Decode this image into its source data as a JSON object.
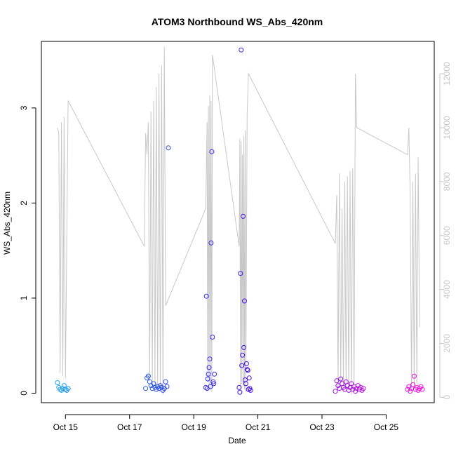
{
  "chart_data": {
    "type": "scatter",
    "title": "ATOM3 Northbound WS_Abs_420nm",
    "xlabel": "Date",
    "ylabel": "WS_Abs_420nm",
    "xlim": [
      "2016-10-14T06:00",
      "2016-10-26T12:00"
    ],
    "ylim": [
      -0.1,
      3.7
    ],
    "yticks": [
      0,
      1,
      2,
      3
    ],
    "y2lim": [
      -200,
      13200
    ],
    "y2ticks": [
      0,
      2000,
      4000,
      6000,
      8000,
      10000,
      12000
    ],
    "xticks": [
      {
        "date": "2016-10-15",
        "label": "Oct 15"
      },
      {
        "date": "2016-10-17",
        "label": "Oct 17"
      },
      {
        "date": "2016-10-19",
        "label": "Oct 19"
      },
      {
        "date": "2016-10-21",
        "label": "Oct 21"
      },
      {
        "date": "2016-10-23",
        "label": "Oct 23"
      },
      {
        "date": "2016-10-25",
        "label": "Oct 25"
      }
    ],
    "grid": false,
    "legend": "none",
    "colors": {
      "line": "#c8c8c8",
      "point_start": "#18b0ee",
      "point_mid": "#3a10e8",
      "point_end": "#ff10e0",
      "axis": "#000000",
      "axis_right": "#c8c8c8"
    },
    "series": [
      {
        "type": "points",
        "points": [
          [
            "2016-10-14T18:00",
            0.11
          ],
          [
            "2016-10-14T19:00",
            0.06
          ],
          [
            "2016-10-14T20:00",
            0.04
          ],
          [
            "2016-10-14T21:00",
            0.03
          ],
          [
            "2016-10-14T22:00",
            0.05
          ],
          [
            "2016-10-14T23:00",
            0.08
          ],
          [
            "2016-10-15T00:00",
            0.04
          ],
          [
            "2016-10-15T01:00",
            0.03
          ],
          [
            "2016-10-15T02:00",
            0.05
          ],
          [
            "2016-10-17T12:00",
            0.05
          ],
          [
            "2016-10-17T13:00",
            0.16
          ],
          [
            "2016-10-17T14:00",
            0.18
          ],
          [
            "2016-10-17T15:00",
            0.12
          ],
          [
            "2016-10-17T16:00",
            0.08
          ],
          [
            "2016-10-17T17:00",
            0.05
          ],
          [
            "2016-10-17T18:00",
            0.1
          ],
          [
            "2016-10-17T19:00",
            0.06
          ],
          [
            "2016-10-17T20:00",
            0.04
          ],
          [
            "2016-10-17T21:00",
            0.07
          ],
          [
            "2016-10-17T22:00",
            0.05
          ],
          [
            "2016-10-17T23:00",
            0.08
          ],
          [
            "2016-10-18T00:00",
            0.06
          ],
          [
            "2016-10-18T01:00",
            0.03
          ],
          [
            "2016-10-18T02:00",
            0.05
          ],
          [
            "2016-10-18T03:00",
            0.12
          ],
          [
            "2016-10-18T04:00",
            0.07
          ],
          [
            "2016-10-18T05:00",
            2.58
          ],
          [
            "2016-10-19T09:00",
            0.06
          ],
          [
            "2016-10-19T09:30",
            1.02
          ],
          [
            "2016-10-19T10:00",
            0.05
          ],
          [
            "2016-10-19T10:30",
            0.15
          ],
          [
            "2016-10-19T11:00",
            0.2
          ],
          [
            "2016-10-19T11:30",
            0.27
          ],
          [
            "2016-10-19T12:00",
            0.36
          ],
          [
            "2016-10-19T12:30",
            0.07
          ],
          [
            "2016-10-19T13:00",
            1.58
          ],
          [
            "2016-10-19T13:30",
            2.54
          ],
          [
            "2016-10-19T14:00",
            0.59
          ],
          [
            "2016-10-19T14:30",
            0.12
          ],
          [
            "2016-10-19T15:00",
            0.1
          ],
          [
            "2016-10-19T15:30",
            0.2
          ],
          [
            "2016-10-20T10:00",
            0.06
          ],
          [
            "2016-10-20T10:30",
            0.01
          ],
          [
            "2016-10-20T11:00",
            1.26
          ],
          [
            "2016-10-20T11:30",
            3.61
          ],
          [
            "2016-10-20T12:00",
            0.29
          ],
          [
            "2016-10-20T12:30",
            0.4
          ],
          [
            "2016-10-20T13:00",
            1.86
          ],
          [
            "2016-10-20T13:30",
            0.48
          ],
          [
            "2016-10-20T14:00",
            0.97
          ],
          [
            "2016-10-20T14:30",
            0.14
          ],
          [
            "2016-10-20T15:00",
            0.1
          ],
          [
            "2016-10-20T15:30",
            0.31
          ],
          [
            "2016-10-20T16:00",
            0.25
          ],
          [
            "2016-10-20T16:30",
            0.24
          ],
          [
            "2016-10-20T17:00",
            0.04
          ],
          [
            "2016-10-20T17:30",
            0.16
          ],
          [
            "2016-10-20T18:00",
            0.05
          ],
          [
            "2016-10-20T18:30",
            0.03
          ],
          [
            "2016-10-23T10:00",
            0.02
          ],
          [
            "2016-10-23T11:00",
            0.13
          ],
          [
            "2016-10-23T12:00",
            0.08
          ],
          [
            "2016-10-23T13:00",
            0.05
          ],
          [
            "2016-10-23T14:00",
            0.15
          ],
          [
            "2016-10-23T15:00",
            0.1
          ],
          [
            "2016-10-23T16:00",
            0.06
          ],
          [
            "2016-10-23T17:00",
            0.04
          ],
          [
            "2016-10-23T18:00",
            0.12
          ],
          [
            "2016-10-23T19:00",
            0.08
          ],
          [
            "2016-10-23T20:00",
            0.03
          ],
          [
            "2016-10-23T21:00",
            0.06
          ],
          [
            "2016-10-23T22:00",
            0.1
          ],
          [
            "2016-10-23T23:00",
            0.04
          ],
          [
            "2016-10-24T00:00",
            0.07
          ],
          [
            "2016-10-24T01:00",
            0.02
          ],
          [
            "2016-10-24T02:00",
            0.05
          ],
          [
            "2016-10-24T03:00",
            0.08
          ],
          [
            "2016-10-24T04:00",
            0.04
          ],
          [
            "2016-10-24T05:00",
            0.06
          ],
          [
            "2016-10-24T06:00",
            0.03
          ],
          [
            "2016-10-24T07:00",
            0.05
          ],
          [
            "2016-10-25T16:00",
            0.04
          ],
          [
            "2016-10-25T17:00",
            0.07
          ],
          [
            "2016-10-25T18:00",
            0.02
          ],
          [
            "2016-10-25T19:00",
            0.05
          ],
          [
            "2016-10-25T20:00",
            0.09
          ],
          [
            "2016-10-25T21:00",
            0.18
          ],
          [
            "2016-10-25T22:00",
            0.04
          ],
          [
            "2016-10-25T23:00",
            0.06
          ],
          [
            "2016-10-26T00:00",
            0.03
          ],
          [
            "2016-10-26T01:00",
            0.05
          ],
          [
            "2016-10-26T02:00",
            0.07
          ],
          [
            "2016-10-26T03:00",
            0.04
          ]
        ]
      },
      {
        "type": "line",
        "axis": "right",
        "points": [
          [
            "2016-10-14T18:00",
            10000
          ],
          [
            "2016-10-14T19:00",
            9800
          ],
          [
            "2016-10-14T20:00",
            900
          ],
          [
            "2016-10-14T21:00",
            10200
          ],
          [
            "2016-10-14T22:00",
            800
          ],
          [
            "2016-10-14T23:00",
            10400
          ],
          [
            "2016-10-15T00:00",
            700
          ],
          [
            "2016-10-15T02:00",
            11000
          ],
          [
            "2016-10-17T11:00",
            5600
          ],
          [
            "2016-10-17T12:00",
            9800
          ],
          [
            "2016-10-17T13:00",
            9000
          ],
          [
            "2016-10-17T14:00",
            10200
          ],
          [
            "2016-10-17T15:00",
            600
          ],
          [
            "2016-10-17T16:00",
            10600
          ],
          [
            "2016-10-17T17:00",
            500
          ],
          [
            "2016-10-17T18:00",
            11000
          ],
          [
            "2016-10-17T19:00",
            400
          ],
          [
            "2016-10-17T20:00",
            11500
          ],
          [
            "2016-10-17T21:00",
            300
          ],
          [
            "2016-10-17T22:00",
            12000
          ],
          [
            "2016-10-17T23:00",
            200
          ],
          [
            "2016-10-18T00:00",
            12300
          ],
          [
            "2016-10-18T01:00",
            100
          ],
          [
            "2016-10-18T02:00",
            13000
          ],
          [
            "2016-10-18T03:00",
            3400
          ],
          [
            "2016-10-19T09:00",
            7000
          ],
          [
            "2016-10-19T10:00",
            10200
          ],
          [
            "2016-10-19T10:30",
            600
          ],
          [
            "2016-10-19T11:00",
            10800
          ],
          [
            "2016-10-19T11:30",
            400
          ],
          [
            "2016-10-19T12:00",
            11200
          ],
          [
            "2016-10-19T12:30",
            300
          ],
          [
            "2016-10-19T13:00",
            11000
          ],
          [
            "2016-10-19T13:30",
            200
          ],
          [
            "2016-10-19T14:00",
            12700
          ],
          [
            "2016-10-20T10:00",
            5600
          ],
          [
            "2016-10-20T10:30",
            9600
          ],
          [
            "2016-10-20T11:00",
            300
          ],
          [
            "2016-10-20T11:30",
            9500
          ],
          [
            "2016-10-20T12:00",
            500
          ],
          [
            "2016-10-20T12:30",
            9000
          ],
          [
            "2016-10-20T13:00",
            400
          ],
          [
            "2016-10-20T13:30",
            9700
          ],
          [
            "2016-10-20T14:00",
            300
          ],
          [
            "2016-10-20T14:30",
            9900
          ],
          [
            "2016-10-20T15:00",
            200
          ],
          [
            "2016-10-20T16:00",
            10500
          ],
          [
            "2016-10-20T17:00",
            12000
          ],
          [
            "2016-10-23T10:00",
            5700
          ],
          [
            "2016-10-23T11:00",
            7500
          ],
          [
            "2016-10-23T12:00",
            300
          ],
          [
            "2016-10-23T13:00",
            8300
          ],
          [
            "2016-10-23T14:00",
            500
          ],
          [
            "2016-10-23T15:00",
            7000
          ],
          [
            "2016-10-23T16:00",
            400
          ],
          [
            "2016-10-23T17:00",
            8000
          ],
          [
            "2016-10-23T18:00",
            300
          ],
          [
            "2016-10-23T19:00",
            8200
          ],
          [
            "2016-10-23T20:00",
            200
          ],
          [
            "2016-10-23T21:00",
            8400
          ],
          [
            "2016-10-23T22:00",
            100
          ],
          [
            "2016-10-23T23:00",
            8500
          ],
          [
            "2016-10-24T00:00",
            300
          ],
          [
            "2016-10-24T01:00",
            12000
          ],
          [
            "2016-10-24T02:00",
            10000
          ],
          [
            "2016-10-25T16:00",
            9000
          ],
          [
            "2016-10-25T17:00",
            10000
          ],
          [
            "2016-10-25T18:00",
            7500
          ],
          [
            "2016-10-25T19:00",
            300
          ],
          [
            "2016-10-25T20:00",
            8000
          ],
          [
            "2016-10-25T21:00",
            400
          ],
          [
            "2016-10-25T22:00",
            8300
          ],
          [
            "2016-10-25T23:00",
            500
          ],
          [
            "2016-10-26T00:00",
            8900
          ],
          [
            "2016-10-26T01:00",
            2600
          ]
        ]
      }
    ]
  }
}
